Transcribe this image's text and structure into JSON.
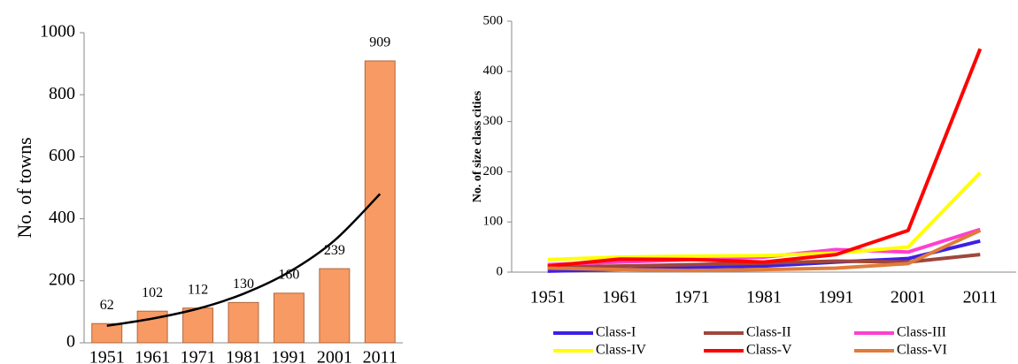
{
  "chart_data": [
    {
      "type": "bar",
      "y_label": "No. of towns",
      "categories": [
        "1951",
        "1961",
        "1971",
        "1981",
        "1991",
        "2001",
        "2011"
      ],
      "values": [
        62,
        102,
        112,
        130,
        160,
        239,
        909
      ],
      "color": "#f79a64",
      "trend": [
        55,
        78,
        110,
        158,
        228,
        330,
        480
      ],
      "trend_color": "#000000",
      "ylim": [
        0,
        1000
      ],
      "yticks": [
        0,
        200,
        400,
        600,
        800,
        1000
      ]
    },
    {
      "type": "line",
      "y_label": "No. of size class cities",
      "categories": [
        "1951",
        "1961",
        "1971",
        "1981",
        "1991",
        "2001",
        "2011"
      ],
      "series": [
        {
          "name": "Class-I",
          "color": "#3b1fe8",
          "values": [
            2,
            5,
            10,
            12,
            20,
            27,
            62
          ]
        },
        {
          "name": "Class-II",
          "color": "#a0463c",
          "values": [
            10,
            12,
            15,
            18,
            22,
            20,
            35
          ]
        },
        {
          "name": "Class-III",
          "color": "#ff3fd0",
          "values": [
            15,
            20,
            25,
            30,
            45,
            40,
            85
          ]
        },
        {
          "name": "Class-IV",
          "color": "#ffff00",
          "values": [
            25,
            30,
            32,
            33,
            38,
            50,
            198
          ]
        },
        {
          "name": "Class-V",
          "color": "#ff0000",
          "values": [
            12,
            26,
            25,
            20,
            35,
            83,
            445
          ]
        },
        {
          "name": "Class-VI",
          "color": "#e07b39",
          "values": [
            8,
            5,
            3,
            5,
            8,
            17,
            83
          ]
        }
      ],
      "ylim": [
        0,
        500
      ],
      "yticks": [
        0,
        100,
        200,
        300,
        400,
        500
      ],
      "legend": "bottom"
    }
  ]
}
